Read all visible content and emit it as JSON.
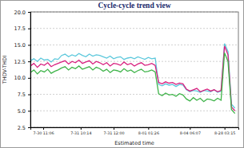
{
  "chart_data": {
    "type": "line",
    "title": "Cycle-cycle trend view",
    "x_label": "Estimated time",
    "y_label": "THDV-THDI",
    "x": [
      0,
      1,
      2,
      3,
      4,
      5,
      6,
      7,
      8,
      9,
      10,
      11,
      12,
      13,
      14,
      15,
      16,
      17,
      18,
      19,
      20,
      21,
      22,
      23,
      24,
      25,
      26,
      27,
      28,
      29,
      30,
      31,
      32,
      33,
      34,
      35,
      36,
      37,
      38,
      39,
      40,
      41,
      42,
      43,
      44,
      45,
      46,
      47,
      48,
      49,
      50,
      51,
      52,
      53,
      54,
      55,
      56,
      57,
      58,
      59
    ],
    "xlim": [
      0,
      60
    ],
    "xticks": [
      {
        "value": 3.7,
        "label": "7-30 11:06"
      },
      {
        "value": 14.5,
        "label": "7-31 10:14"
      },
      {
        "value": 24,
        "label": "7-31 12:00"
      },
      {
        "value": 34,
        "label": "8-01 01:26"
      },
      {
        "value": 46,
        "label": "8-04 06:07"
      },
      {
        "value": 56,
        "label": "8-28 03:15"
      }
    ],
    "ylim": [
      2.5,
      20
    ],
    "yticks": [
      {
        "value": 2.5,
        "label": "2.5"
      },
      {
        "value": 5,
        "label": "5.0"
      },
      {
        "value": 7.5,
        "label": "7.5"
      },
      {
        "value": 10,
        "label": "10.0"
      },
      {
        "value": 12.5,
        "label": "12.5"
      },
      {
        "value": 15,
        "label": "15.0"
      },
      {
        "value": 17.5,
        "label": "17.5"
      },
      {
        "value": 20,
        "label": "20.0"
      }
    ],
    "grid": true,
    "series": [
      {
        "color": "#5cc8dc",
        "values": [
          12.6,
          12.9,
          12.5,
          13.0,
          12.7,
          12.8,
          12.4,
          12.9,
          12.8,
          13.4,
          13.6,
          13.2,
          13.5,
          13.3,
          13.7,
          13.4,
          13.2,
          13.6,
          13.3,
          13.5,
          13.4,
          13.2,
          13.0,
          13.3,
          12.9,
          13.1,
          13.2,
          12.8,
          13.0,
          13.1,
          12.9,
          13.2,
          13.0,
          12.8,
          13.1,
          12.9,
          13.0,
          9.0,
          8.8,
          9.1,
          8.9,
          9.0,
          8.7,
          9.0,
          8.9,
          8.2,
          7.9,
          8.1,
          8.0,
          7.8,
          8.1,
          8.0,
          7.9,
          8.2,
          7.8,
          8.0,
          15.2,
          14.0,
          6.0,
          5.4
        ]
      },
      {
        "color": "#d8207f",
        "values": [
          11.8,
          12.2,
          11.6,
          12.1,
          11.9,
          12.3,
          11.7,
          12.0,
          12.2,
          12.4,
          12.6,
          12.1,
          12.5,
          12.3,
          12.7,
          12.2,
          12.4,
          12.6,
          12.1,
          12.5,
          12.3,
          12.0,
          12.3,
          11.8,
          12.2,
          12.1,
          11.9,
          12.4,
          12.0,
          12.2,
          11.8,
          12.1,
          12.3,
          11.9,
          12.0,
          12.2,
          11.9,
          9.3,
          9.1,
          9.4,
          9.2,
          9.3,
          9.0,
          9.2,
          9.1,
          8.3,
          8.0,
          8.2,
          8.4,
          7.9,
          8.1,
          8.3,
          8.0,
          8.2,
          7.9,
          8.1,
          14.8,
          13.5,
          5.6,
          5.0
        ]
      },
      {
        "color": "#3fb44a",
        "values": [
          10.8,
          11.2,
          10.6,
          11.1,
          10.9,
          11.3,
          10.7,
          11.0,
          11.2,
          11.5,
          11.7,
          11.2,
          11.6,
          11.4,
          11.8,
          11.3,
          11.5,
          11.7,
          11.2,
          11.6,
          11.4,
          11.0,
          11.3,
          10.8,
          11.2,
          11.1,
          10.9,
          11.4,
          11.0,
          11.2,
          10.8,
          11.1,
          11.3,
          10.9,
          11.0,
          11.2,
          10.9,
          7.6,
          7.3,
          7.7,
          7.4,
          7.5,
          7.2,
          7.6,
          7.4,
          6.8,
          6.5,
          7.0,
          6.6,
          6.9,
          6.4,
          6.8,
          6.7,
          6.5,
          6.9,
          6.6,
          13.8,
          12.5,
          5.2,
          4.6
        ]
      }
    ]
  }
}
